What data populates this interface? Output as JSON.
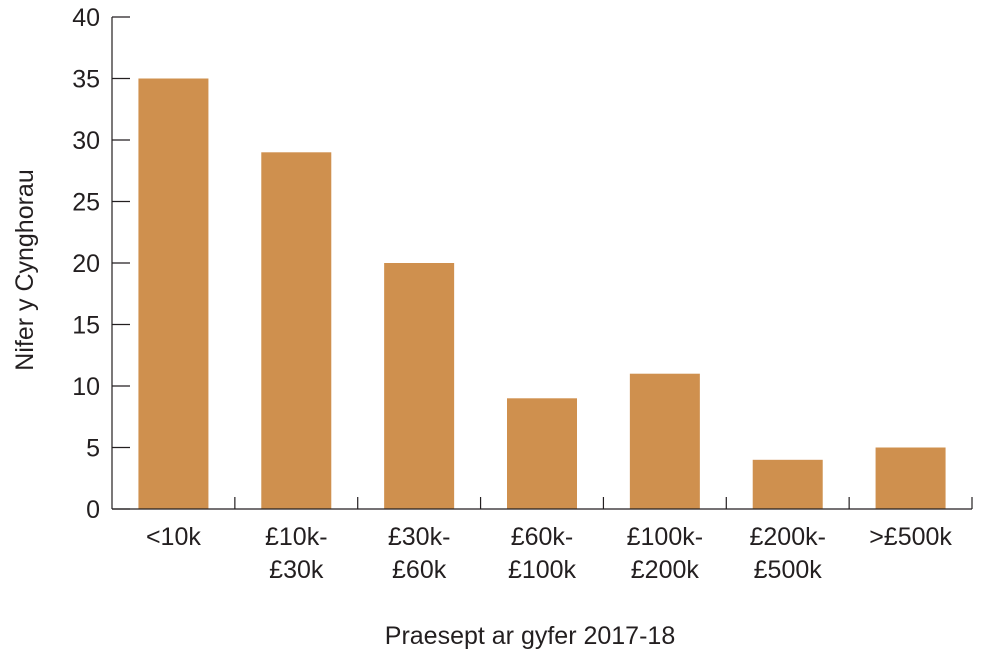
{
  "chart_data": {
    "type": "bar",
    "categories": [
      [
        "<10k"
      ],
      [
        "£10k-",
        "£30k"
      ],
      [
        "£30k-",
        "£60k"
      ],
      [
        "£60k-",
        "£100k"
      ],
      [
        "£100k-",
        "£200k"
      ],
      [
        "£200k-",
        "£500k"
      ],
      [
        ">£500k"
      ]
    ],
    "values": [
      35,
      29,
      20,
      9,
      11,
      4,
      5
    ],
    "xlabel": "Praesept ar gyfer 2017-18",
    "ylabel": "Nifer y Cynghorau",
    "ylim": [
      0,
      40
    ],
    "yticks": [
      0,
      5,
      10,
      15,
      20,
      25,
      30,
      35,
      40
    ],
    "bar_color": "#cf904e",
    "grid": false,
    "legend": "none"
  }
}
